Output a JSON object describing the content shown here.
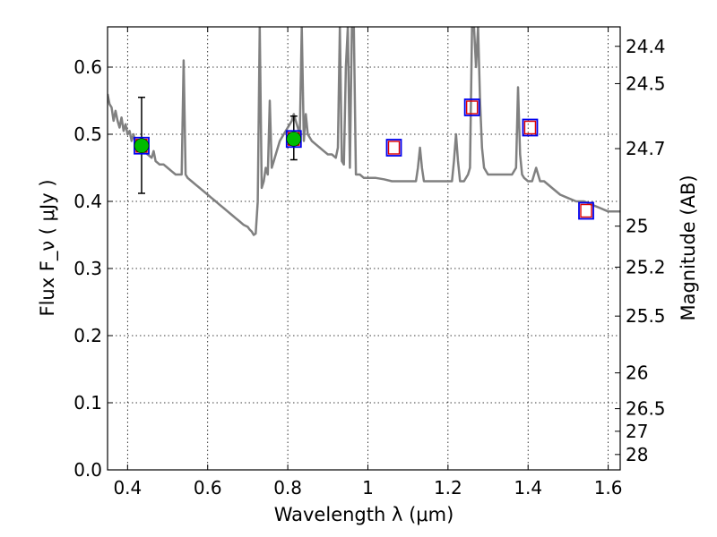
{
  "chart_data": {
    "type": "line",
    "xlabel": "Wavelength  λ (μm)",
    "ylabel": "Flux  F_ν  ( μJy )",
    "ylabel2": "Magnitude (AB)",
    "xlim": [
      0.35,
      1.63
    ],
    "ylim": [
      0.0,
      0.66
    ],
    "x_ticks": [
      0.4,
      0.6,
      0.8,
      1.0,
      1.2,
      1.4,
      1.6
    ],
    "x_tick_labels": [
      "0.4",
      "0.6",
      "0.8",
      "1",
      "1.2",
      "1.4",
      "1.6"
    ],
    "y_ticks": [
      0.0,
      0.1,
      0.2,
      0.3,
      0.4,
      0.5,
      0.6
    ],
    "y_tick_labels": [
      "0.0",
      "0.1",
      "0.2",
      "0.3",
      "0.4",
      "0.5",
      "0.6"
    ],
    "y2_ticks": [
      {
        "label": "24.4",
        "flux": 0.631
      },
      {
        "label": "24.5",
        "flux": 0.5754
      },
      {
        "label": "24.7",
        "flux": 0.4786
      },
      {
        "label": "25",
        "flux": 0.3631
      },
      {
        "label": "25.2",
        "flux": 0.302
      },
      {
        "label": "25.5",
        "flux": 0.2291
      },
      {
        "label": "26",
        "flux": 0.1445
      },
      {
        "label": "26.5",
        "flux": 0.0912
      },
      {
        "label": "27",
        "flux": 0.0575
      },
      {
        "label": "28",
        "flux": 0.0229
      }
    ],
    "grid": true,
    "colors": {
      "sed_line": "#808080",
      "observed_marker": "#00bb00",
      "model_square_outer": "#0000ee",
      "model_square_inner": "#dd0000",
      "error_bar": "#000000"
    },
    "series": [
      {
        "type": "line",
        "points": [
          [
            0.35,
            0.56
          ],
          [
            0.355,
            0.545
          ],
          [
            0.36,
            0.54
          ],
          [
            0.365,
            0.52
          ],
          [
            0.37,
            0.535
          ],
          [
            0.375,
            0.52
          ],
          [
            0.38,
            0.51
          ],
          [
            0.385,
            0.525
          ],
          [
            0.39,
            0.505
          ],
          [
            0.395,
            0.515
          ],
          [
            0.4,
            0.5
          ],
          [
            0.405,
            0.505
          ],
          [
            0.41,
            0.49
          ],
          [
            0.415,
            0.5
          ],
          [
            0.42,
            0.485
          ],
          [
            0.425,
            0.49
          ],
          [
            0.43,
            0.48
          ],
          [
            0.435,
            0.485
          ],
          [
            0.44,
            0.475
          ],
          [
            0.45,
            0.47
          ],
          [
            0.46,
            0.465
          ],
          [
            0.465,
            0.475
          ],
          [
            0.47,
            0.46
          ],
          [
            0.48,
            0.455
          ],
          [
            0.49,
            0.455
          ],
          [
            0.5,
            0.45
          ],
          [
            0.51,
            0.445
          ],
          [
            0.52,
            0.44
          ],
          [
            0.53,
            0.44
          ],
          [
            0.535,
            0.44
          ],
          [
            0.54,
            0.61
          ],
          [
            0.545,
            0.44
          ],
          [
            0.55,
            0.435
          ],
          [
            0.56,
            0.43
          ],
          [
            0.57,
            0.425
          ],
          [
            0.58,
            0.42
          ],
          [
            0.59,
            0.415
          ],
          [
            0.6,
            0.41
          ],
          [
            0.61,
            0.405
          ],
          [
            0.62,
            0.4
          ],
          [
            0.63,
            0.395
          ],
          [
            0.64,
            0.39
          ],
          [
            0.65,
            0.385
          ],
          [
            0.66,
            0.38
          ],
          [
            0.67,
            0.375
          ],
          [
            0.68,
            0.37
          ],
          [
            0.69,
            0.365
          ],
          [
            0.7,
            0.362
          ],
          [
            0.705,
            0.358
          ],
          [
            0.71,
            0.355
          ],
          [
            0.715,
            0.35
          ],
          [
            0.72,
            0.352
          ],
          [
            0.725,
            0.4
          ],
          [
            0.73,
            0.66
          ],
          [
            0.735,
            0.42
          ],
          [
            0.74,
            0.43
          ],
          [
            0.745,
            0.45
          ],
          [
            0.75,
            0.44
          ],
          [
            0.755,
            0.55
          ],
          [
            0.76,
            0.45
          ],
          [
            0.765,
            0.46
          ],
          [
            0.77,
            0.47
          ],
          [
            0.78,
            0.49
          ],
          [
            0.79,
            0.5
          ],
          [
            0.8,
            0.51
          ],
          [
            0.81,
            0.52
          ],
          [
            0.815,
            0.53
          ],
          [
            0.82,
            0.52
          ],
          [
            0.83,
            0.5
          ],
          [
            0.835,
            0.66
          ],
          [
            0.84,
            0.49
          ],
          [
            0.845,
            0.53
          ],
          [
            0.85,
            0.5
          ],
          [
            0.86,
            0.49
          ],
          [
            0.87,
            0.485
          ],
          [
            0.88,
            0.48
          ],
          [
            0.89,
            0.475
          ],
          [
            0.9,
            0.47
          ],
          [
            0.91,
            0.47
          ],
          [
            0.92,
            0.465
          ],
          [
            0.925,
            0.48
          ],
          [
            0.93,
            0.66
          ],
          [
            0.935,
            0.46
          ],
          [
            0.94,
            0.455
          ],
          [
            0.945,
            0.6
          ],
          [
            0.95,
            0.66
          ],
          [
            0.955,
            0.45
          ],
          [
            0.96,
            0.66
          ],
          [
            0.965,
            0.66
          ],
          [
            0.97,
            0.44
          ],
          [
            0.98,
            0.44
          ],
          [
            0.99,
            0.435
          ],
          [
            1.0,
            0.435
          ],
          [
            1.02,
            0.435
          ],
          [
            1.04,
            0.433
          ],
          [
            1.06,
            0.43
          ],
          [
            1.08,
            0.43
          ],
          [
            1.1,
            0.43
          ],
          [
            1.12,
            0.43
          ],
          [
            1.125,
            0.45
          ],
          [
            1.13,
            0.48
          ],
          [
            1.135,
            0.45
          ],
          [
            1.14,
            0.43
          ],
          [
            1.16,
            0.43
          ],
          [
            1.18,
            0.43
          ],
          [
            1.2,
            0.43
          ],
          [
            1.21,
            0.43
          ],
          [
            1.215,
            0.46
          ],
          [
            1.22,
            0.5
          ],
          [
            1.225,
            0.46
          ],
          [
            1.23,
            0.43
          ],
          [
            1.24,
            0.43
          ],
          [
            1.25,
            0.44
          ],
          [
            1.255,
            0.45
          ],
          [
            1.26,
            0.66
          ],
          [
            1.265,
            0.66
          ],
          [
            1.27,
            0.6
          ],
          [
            1.275,
            0.66
          ],
          [
            1.28,
            0.55
          ],
          [
            1.285,
            0.48
          ],
          [
            1.29,
            0.45
          ],
          [
            1.3,
            0.44
          ],
          [
            1.32,
            0.44
          ],
          [
            1.34,
            0.44
          ],
          [
            1.36,
            0.44
          ],
          [
            1.37,
            0.45
          ],
          [
            1.375,
            0.57
          ],
          [
            1.38,
            0.47
          ],
          [
            1.385,
            0.44
          ],
          [
            1.39,
            0.435
          ],
          [
            1.4,
            0.43
          ],
          [
            1.41,
            0.43
          ],
          [
            1.42,
            0.45
          ],
          [
            1.425,
            0.44
          ],
          [
            1.43,
            0.43
          ],
          [
            1.44,
            0.43
          ],
          [
            1.46,
            0.42
          ],
          [
            1.48,
            0.41
          ],
          [
            1.5,
            0.405
          ],
          [
            1.52,
            0.4
          ],
          [
            1.54,
            0.4
          ],
          [
            1.56,
            0.395
          ],
          [
            1.58,
            0.39
          ],
          [
            1.6,
            0.385
          ],
          [
            1.63,
            0.385
          ]
        ]
      },
      {
        "type": "observed_points",
        "points": [
          {
            "x": 0.435,
            "y": 0.483,
            "err_low": 0.412,
            "err_high": 0.555
          },
          {
            "x": 0.815,
            "y": 0.493,
            "err_low": 0.462,
            "err_high": 0.527
          }
        ]
      },
      {
        "type": "model_points",
        "points": [
          {
            "x": 0.435,
            "y": 0.483
          },
          {
            "x": 0.815,
            "y": 0.493
          },
          {
            "x": 1.065,
            "y": 0.48
          },
          {
            "x": 1.26,
            "y": 0.54
          },
          {
            "x": 1.405,
            "y": 0.51
          },
          {
            "x": 1.545,
            "y": 0.386
          }
        ]
      }
    ]
  }
}
